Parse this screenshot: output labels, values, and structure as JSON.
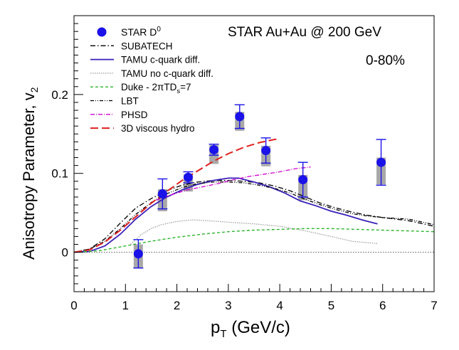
{
  "chart_data": {
    "type": "scatter",
    "title": "STAR  Au+Au @ 200 GeV",
    "subtitle": "0-80%",
    "xlabel_main": "p",
    "xlabel_sub": "T",
    "xlabel_tail": " (GeV/c)",
    "ylabel_main": "Anisotropy Parameter, v",
    "ylabel_sub": "2",
    "xlim": [
      0,
      7
    ],
    "ylim": [
      -0.05,
      0.3
    ],
    "x_ticks": [
      0,
      1,
      2,
      3,
      4,
      5,
      6,
      7
    ],
    "x_tick_labels": [
      "0",
      "1",
      "2",
      "3",
      "4",
      "5",
      "6",
      "7"
    ],
    "y_ticks": [
      0,
      0.1,
      0.2
    ],
    "y_tick_labels": [
      "0",
      "0.1",
      "0.2"
    ],
    "legend_position": "top-left",
    "data_points": {
      "name_main": "STAR D",
      "name_sup": "0",
      "color": "#1a12e8",
      "points": [
        {
          "x": 1.25,
          "y": -0.002,
          "stat": 0.018,
          "sys_lo": 0.018,
          "sys_hi": 0.012
        },
        {
          "x": 1.72,
          "y": 0.074,
          "stat": 0.019,
          "sys_lo": 0.022,
          "sys_hi": 0.006
        },
        {
          "x": 2.22,
          "y": 0.095,
          "stat": 0.007,
          "sys_lo": 0.018,
          "sys_hi": 0.004
        },
        {
          "x": 2.72,
          "y": 0.13,
          "stat": 0.007,
          "sys_lo": 0.018,
          "sys_hi": 0.006
        },
        {
          "x": 3.22,
          "y": 0.172,
          "stat": 0.015,
          "sys_lo": 0.018,
          "sys_hi": 0.006
        },
        {
          "x": 3.73,
          "y": 0.129,
          "stat": 0.016,
          "sys_lo": 0.02,
          "sys_hi": 0.006
        },
        {
          "x": 4.45,
          "y": 0.092,
          "stat": 0.022,
          "sys_lo": 0.026,
          "sys_hi": 0.006
        },
        {
          "x": 5.97,
          "y": 0.114,
          "stat": 0.029,
          "sys_lo": 0.028,
          "sys_hi": 0.006
        }
      ]
    },
    "zero_line": {
      "color": "#555555"
    },
    "series": [
      {
        "name": "SUBATECH",
        "color": "#000000",
        "dash": "7,3,1.5,3",
        "width": 1.3,
        "x": [
          0,
          0.3,
          0.6,
          0.9,
          1.2,
          1.5,
          1.8,
          2.1,
          2.4,
          2.7,
          3.0,
          3.3,
          3.6,
          3.9,
          4.2,
          4.5,
          4.8,
          5.1,
          5.4,
          5.7,
          6.0,
          6.5,
          7.0
        ],
        "y": [
          0,
          0.004,
          0.017,
          0.037,
          0.056,
          0.068,
          0.078,
          0.085,
          0.089,
          0.091,
          0.091,
          0.09,
          0.088,
          0.084,
          0.078,
          0.07,
          0.062,
          0.056,
          0.051,
          0.047,
          0.044,
          0.04,
          0.033
        ]
      },
      {
        "name": "TAMU c-quark diff.",
        "color": "#3a1fb8",
        "dash": "",
        "width": 1.8,
        "x": [
          0,
          0.3,
          0.6,
          0.9,
          1.2,
          1.5,
          1.8,
          2.1,
          2.4,
          2.7,
          3.0,
          3.2,
          3.5,
          3.8,
          4.1,
          4.4,
          4.7,
          5.0,
          5.3,
          5.6,
          5.9
        ],
        "y": [
          0,
          0.001,
          0.008,
          0.023,
          0.042,
          0.058,
          0.07,
          0.079,
          0.086,
          0.091,
          0.094,
          0.094,
          0.089,
          0.083,
          0.075,
          0.065,
          0.059,
          0.052,
          0.047,
          0.041,
          0.036
        ]
      },
      {
        "name": "TAMU no c-quark diff.",
        "color": "#999999",
        "dash": "1.5,1.5",
        "width": 1.2,
        "x": [
          1.1,
          1.3,
          1.5,
          1.7,
          2.0,
          2.3,
          2.6,
          3.0,
          3.5,
          4.0,
          4.5,
          5.0,
          5.4,
          5.9
        ],
        "y": [
          0.01,
          0.022,
          0.03,
          0.035,
          0.039,
          0.041,
          0.04,
          0.038,
          0.036,
          0.033,
          0.027,
          0.02,
          0.014,
          0.011
        ]
      },
      {
        "name": "Duke - 2πTD",
        "name_sub": "s",
        "name_tail": "=7",
        "color": "#2ab52a",
        "dash": "4,3",
        "width": 1.4,
        "x": [
          0,
          0.5,
          1.0,
          1.5,
          2.0,
          2.5,
          3.0,
          3.5,
          4.0,
          4.5,
          5.0,
          5.5,
          6.0,
          6.5,
          7.0
        ],
        "y": [
          0,
          0.002,
          0.008,
          0.014,
          0.019,
          0.023,
          0.026,
          0.028,
          0.029,
          0.03,
          0.03,
          0.029,
          0.028,
          0.027,
          0.026
        ]
      },
      {
        "name": "LBT",
        "color": "#000000",
        "dash": "5,2,1,2,1,2",
        "width": 1.3,
        "x": [
          0,
          0.3,
          0.6,
          0.9,
          1.2,
          1.5,
          1.8,
          2.1,
          2.4,
          2.7,
          3.0,
          3.3,
          3.6,
          3.9,
          4.2,
          4.5,
          4.8,
          5.1,
          5.4,
          5.7,
          6.0,
          6.5,
          7.0
        ],
        "y": [
          0,
          0.004,
          0.014,
          0.03,
          0.048,
          0.063,
          0.074,
          0.082,
          0.087,
          0.089,
          0.089,
          0.088,
          0.085,
          0.081,
          0.075,
          0.067,
          0.06,
          0.054,
          0.049,
          0.046,
          0.044,
          0.042,
          0.035
        ]
      },
      {
        "name": "PHSD",
        "color": "#d100d1",
        "dash": "6,2,1,2",
        "width": 1.3,
        "x": [
          1.6,
          1.8,
          2.0,
          2.2,
          2.5,
          2.8,
          3.1,
          3.4,
          3.7,
          4.0,
          4.3,
          4.6
        ],
        "y": [
          0.066,
          0.071,
          0.075,
          0.079,
          0.083,
          0.087,
          0.092,
          0.096,
          0.099,
          0.102,
          0.106,
          0.108
        ]
      },
      {
        "name": "3D viscous hydro",
        "color": "#e02020",
        "dash": "11,5",
        "width": 2,
        "x": [
          0,
          0.3,
          0.6,
          0.9,
          1.2,
          1.5,
          1.8,
          2.1,
          2.4,
          2.7,
          3.0,
          3.3,
          3.6,
          3.9,
          4.0
        ],
        "y": [
          0,
          0.003,
          0.013,
          0.028,
          0.045,
          0.062,
          0.077,
          0.091,
          0.103,
          0.115,
          0.125,
          0.133,
          0.139,
          0.143,
          0.144
        ]
      }
    ]
  }
}
